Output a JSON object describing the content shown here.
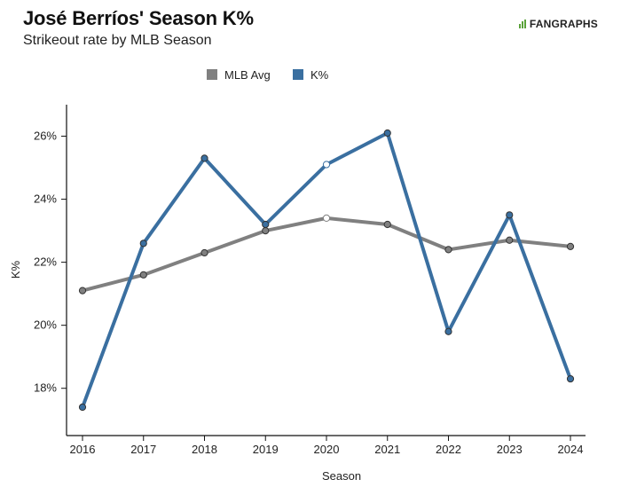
{
  "header": {
    "title": "José Berríos' Season K%",
    "subtitle": "Strikeout rate by MLB Season",
    "brand": "FANGRAPHS"
  },
  "chart_data": {
    "type": "line",
    "title": "José Berríos' Season K%",
    "subtitle": "Strikeout rate by MLB Season",
    "xlabel": "Season",
    "ylabel": "K%",
    "categories": [
      "2016",
      "2017",
      "2018",
      "2019",
      "2020",
      "2021",
      "2022",
      "2023",
      "2024"
    ],
    "yticks": [
      "18%",
      "20%",
      "22%",
      "24%",
      "26%"
    ],
    "ylim": [
      16.5,
      27
    ],
    "legend_position": "top-center",
    "grid": false,
    "series": [
      {
        "name": "MLB Avg",
        "color": "#808080",
        "values": [
          21.1,
          21.6,
          22.3,
          23.0,
          23.4,
          23.2,
          22.4,
          22.7,
          22.5
        ],
        "hollow_index": 4
      },
      {
        "name": "K%",
        "color": "#3a6fa0",
        "values": [
          17.4,
          22.6,
          25.3,
          23.2,
          25.1,
          26.1,
          19.8,
          23.5,
          18.3
        ],
        "hollow_index": 4
      }
    ]
  }
}
